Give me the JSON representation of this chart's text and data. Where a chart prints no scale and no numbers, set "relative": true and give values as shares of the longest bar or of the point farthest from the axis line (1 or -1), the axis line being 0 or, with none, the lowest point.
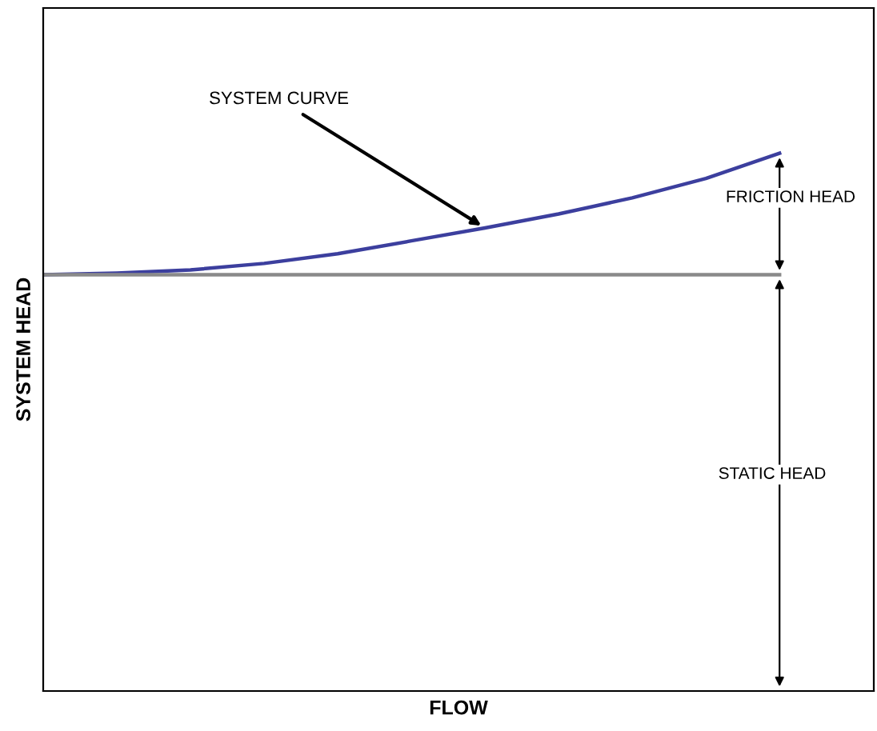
{
  "chart_data": {
    "type": "line",
    "relative": true,
    "xlabel": "FLOW",
    "ylabel": "SYSTEM HEAD",
    "categories": [
      null,
      null,
      null,
      null,
      null,
      null,
      null,
      null,
      null,
      null,
      null
    ],
    "series": [
      {
        "color": "#3c3f9e",
        "values": [
          0.774,
          0.777,
          0.783,
          0.795,
          0.813,
          0.837,
          0.861,
          0.887,
          0.917,
          0.953,
          1
        ]
      },
      {
        "color": "#8a8a8a",
        "values": [
          0.774,
          0.774,
          0.774,
          0.774,
          0.774,
          0.774,
          0.774,
          0.774,
          0.774,
          0.774,
          0.774
        ]
      }
    ],
    "annotations": [
      "SYSTEM CURVE",
      "FRICTION HEAD",
      "STATIC HEAD"
    ],
    "legend": false
  }
}
